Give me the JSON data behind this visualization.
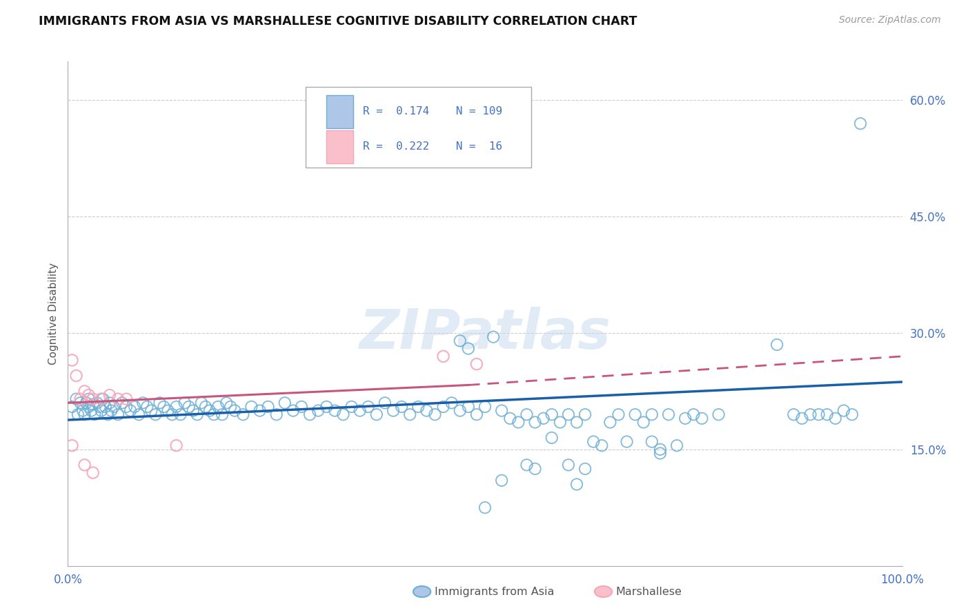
{
  "title": "IMMIGRANTS FROM ASIA VS MARSHALLESE COGNITIVE DISABILITY CORRELATION CHART",
  "source": "Source: ZipAtlas.com",
  "ylabel": "Cognitive Disability",
  "xlim": [
    0.0,
    1.0
  ],
  "ylim": [
    0.0,
    0.65
  ],
  "yticks": [
    0.15,
    0.3,
    0.45,
    0.6
  ],
  "ytick_labels": [
    "15.0%",
    "30.0%",
    "45.0%",
    "60.0%"
  ],
  "xtick_labels": [
    "0.0%",
    "100.0%"
  ],
  "blue_color": "#6baed6",
  "pink_color": "#f4a7b9",
  "line_blue": "#1a5fa8",
  "line_pink": "#c9567a",
  "watermark": "ZIPatlas",
  "blue_scatter": [
    [
      0.005,
      0.205
    ],
    [
      0.01,
      0.215
    ],
    [
      0.012,
      0.195
    ],
    [
      0.015,
      0.21
    ],
    [
      0.018,
      0.2
    ],
    [
      0.02,
      0.195
    ],
    [
      0.022,
      0.21
    ],
    [
      0.025,
      0.205
    ],
    [
      0.025,
      0.215
    ],
    [
      0.028,
      0.2
    ],
    [
      0.03,
      0.208
    ],
    [
      0.032,
      0.195
    ],
    [
      0.035,
      0.21
    ],
    [
      0.038,
      0.205
    ],
    [
      0.04,
      0.2
    ],
    [
      0.042,
      0.215
    ],
    [
      0.045,
      0.205
    ],
    [
      0.048,
      0.195
    ],
    [
      0.05,
      0.21
    ],
    [
      0.052,
      0.2
    ],
    [
      0.055,
      0.205
    ],
    [
      0.06,
      0.195
    ],
    [
      0.065,
      0.21
    ],
    [
      0.07,
      0.205
    ],
    [
      0.075,
      0.2
    ],
    [
      0.08,
      0.205
    ],
    [
      0.085,
      0.195
    ],
    [
      0.09,
      0.21
    ],
    [
      0.095,
      0.205
    ],
    [
      0.1,
      0.2
    ],
    [
      0.105,
      0.195
    ],
    [
      0.11,
      0.21
    ],
    [
      0.115,
      0.205
    ],
    [
      0.12,
      0.2
    ],
    [
      0.125,
      0.195
    ],
    [
      0.13,
      0.205
    ],
    [
      0.135,
      0.195
    ],
    [
      0.14,
      0.21
    ],
    [
      0.145,
      0.205
    ],
    [
      0.15,
      0.2
    ],
    [
      0.155,
      0.195
    ],
    [
      0.16,
      0.21
    ],
    [
      0.165,
      0.205
    ],
    [
      0.17,
      0.2
    ],
    [
      0.175,
      0.195
    ],
    [
      0.18,
      0.205
    ],
    [
      0.185,
      0.195
    ],
    [
      0.19,
      0.21
    ],
    [
      0.195,
      0.205
    ],
    [
      0.2,
      0.2
    ],
    [
      0.21,
      0.195
    ],
    [
      0.22,
      0.205
    ],
    [
      0.23,
      0.2
    ],
    [
      0.24,
      0.205
    ],
    [
      0.25,
      0.195
    ],
    [
      0.26,
      0.21
    ],
    [
      0.27,
      0.2
    ],
    [
      0.28,
      0.205
    ],
    [
      0.29,
      0.195
    ],
    [
      0.3,
      0.2
    ],
    [
      0.31,
      0.205
    ],
    [
      0.32,
      0.2
    ],
    [
      0.33,
      0.195
    ],
    [
      0.34,
      0.205
    ],
    [
      0.35,
      0.2
    ],
    [
      0.36,
      0.205
    ],
    [
      0.37,
      0.195
    ],
    [
      0.38,
      0.21
    ],
    [
      0.39,
      0.2
    ],
    [
      0.4,
      0.205
    ],
    [
      0.41,
      0.195
    ],
    [
      0.42,
      0.205
    ],
    [
      0.43,
      0.2
    ],
    [
      0.44,
      0.195
    ],
    [
      0.45,
      0.205
    ],
    [
      0.46,
      0.21
    ],
    [
      0.47,
      0.2
    ],
    [
      0.48,
      0.205
    ],
    [
      0.47,
      0.29
    ],
    [
      0.49,
      0.195
    ],
    [
      0.5,
      0.205
    ],
    [
      0.51,
      0.295
    ],
    [
      0.52,
      0.2
    ],
    [
      0.53,
      0.19
    ],
    [
      0.54,
      0.185
    ],
    [
      0.55,
      0.195
    ],
    [
      0.56,
      0.185
    ],
    [
      0.57,
      0.19
    ],
    [
      0.58,
      0.195
    ],
    [
      0.59,
      0.185
    ],
    [
      0.6,
      0.195
    ],
    [
      0.61,
      0.185
    ],
    [
      0.62,
      0.195
    ],
    [
      0.63,
      0.16
    ],
    [
      0.64,
      0.155
    ],
    [
      0.65,
      0.185
    ],
    [
      0.66,
      0.195
    ],
    [
      0.67,
      0.16
    ],
    [
      0.68,
      0.195
    ],
    [
      0.69,
      0.185
    ],
    [
      0.7,
      0.195
    ],
    [
      0.71,
      0.15
    ],
    [
      0.72,
      0.195
    ],
    [
      0.73,
      0.155
    ],
    [
      0.74,
      0.19
    ],
    [
      0.75,
      0.195
    ],
    [
      0.76,
      0.19
    ],
    [
      0.78,
      0.195
    ],
    [
      0.85,
      0.285
    ],
    [
      0.87,
      0.195
    ],
    [
      0.88,
      0.19
    ],
    [
      0.89,
      0.195
    ],
    [
      0.9,
      0.195
    ],
    [
      0.91,
      0.195
    ],
    [
      0.92,
      0.19
    ],
    [
      0.93,
      0.2
    ],
    [
      0.94,
      0.195
    ],
    [
      0.95,
      0.57
    ],
    [
      0.48,
      0.28
    ],
    [
      0.5,
      0.075
    ],
    [
      0.52,
      0.11
    ],
    [
      0.55,
      0.13
    ],
    [
      0.56,
      0.125
    ],
    [
      0.6,
      0.13
    ],
    [
      0.61,
      0.105
    ],
    [
      0.62,
      0.125
    ],
    [
      0.58,
      0.165
    ],
    [
      0.7,
      0.16
    ],
    [
      0.71,
      0.145
    ]
  ],
  "pink_scatter": [
    [
      0.005,
      0.265
    ],
    [
      0.01,
      0.245
    ],
    [
      0.015,
      0.215
    ],
    [
      0.02,
      0.225
    ],
    [
      0.025,
      0.22
    ],
    [
      0.03,
      0.215
    ],
    [
      0.04,
      0.215
    ],
    [
      0.05,
      0.22
    ],
    [
      0.06,
      0.215
    ],
    [
      0.07,
      0.215
    ],
    [
      0.005,
      0.155
    ],
    [
      0.02,
      0.13
    ],
    [
      0.03,
      0.12
    ],
    [
      0.13,
      0.155
    ],
    [
      0.45,
      0.27
    ],
    [
      0.49,
      0.26
    ]
  ],
  "blue_trendline": [
    [
      0.0,
      0.188
    ],
    [
      1.0,
      0.237
    ]
  ],
  "pink_trendline_solid": [
    [
      0.0,
      0.21
    ],
    [
      0.48,
      0.233
    ]
  ],
  "pink_trendline_dash": [
    [
      0.48,
      0.233
    ],
    [
      1.0,
      0.27
    ]
  ]
}
